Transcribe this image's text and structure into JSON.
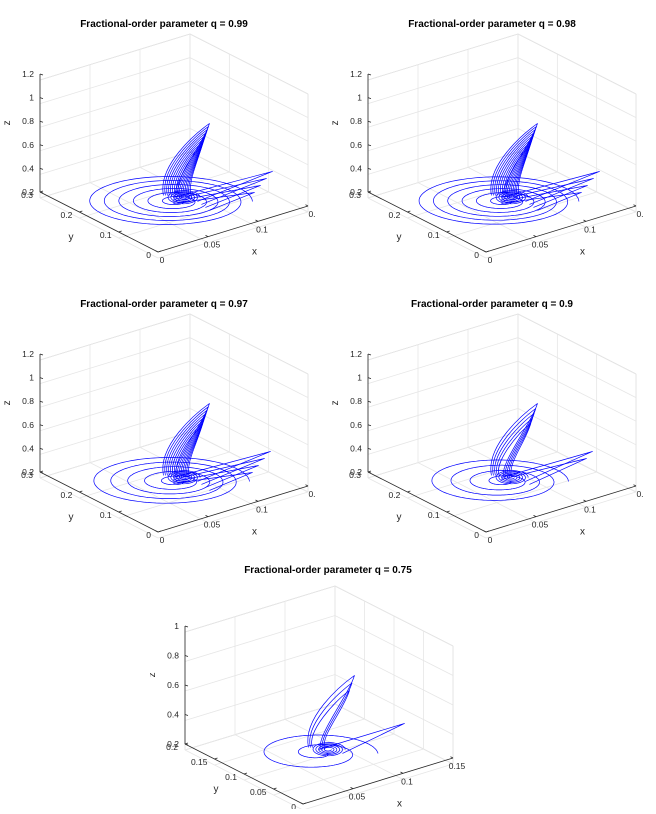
{
  "chart_data": [
    {
      "type": "line3d",
      "title": "Fractional-order parameter q = 0.99",
      "xlabel": "x",
      "ylabel": "y",
      "zlabel": "z",
      "xticks": [
        "0",
        "0.05",
        "0.1",
        "0."
      ],
      "yticks": [
        "0",
        "0.1",
        "0.2",
        "0.3"
      ],
      "zticks": [
        "0.2",
        "0.4",
        "0.6",
        "0.8",
        "1",
        "1.2"
      ],
      "xlim": [
        0,
        0.15
      ],
      "ylim": [
        0,
        0.3
      ],
      "zlim": [
        0.2,
        1.2
      ],
      "grid": true,
      "line_color": "#0000ff",
      "series": [
        {
          "name": "trajectory",
          "q": 0.99,
          "density": 1.0
        }
      ]
    },
    {
      "type": "line3d",
      "title": "Fractional-order parameter q = 0.98",
      "xlabel": "x",
      "ylabel": "y",
      "zlabel": "z",
      "xticks": [
        "0",
        "0.05",
        "0.1",
        "0."
      ],
      "yticks": [
        "0",
        "0.1",
        "0.2",
        "0.3"
      ],
      "zticks": [
        "0.2",
        "0.4",
        "0.6",
        "0.8",
        "1",
        "1.2"
      ],
      "xlim": [
        0,
        0.15
      ],
      "ylim": [
        0,
        0.3
      ],
      "zlim": [
        0.2,
        1.2
      ],
      "grid": true,
      "line_color": "#0000ff",
      "series": [
        {
          "name": "trajectory",
          "q": 0.98,
          "density": 0.95
        }
      ]
    },
    {
      "type": "line3d",
      "title": "Fractional-order parameter q = 0.97",
      "xlabel": "x",
      "ylabel": "y",
      "zlabel": "z",
      "xticks": [
        "0",
        "0.05",
        "0.1",
        "0."
      ],
      "yticks": [
        "0",
        "0.1",
        "0.2",
        "0.3"
      ],
      "zticks": [
        "0.2",
        "0.4",
        "0.6",
        "0.8",
        "1",
        "1.2"
      ],
      "xlim": [
        0,
        0.15
      ],
      "ylim": [
        0,
        0.3
      ],
      "zlim": [
        0.2,
        1.2
      ],
      "grid": true,
      "line_color": "#0000ff",
      "series": [
        {
          "name": "trajectory",
          "q": 0.97,
          "density": 0.9
        }
      ]
    },
    {
      "type": "line3d",
      "title": "Fractional-order parameter q = 0.9",
      "xlabel": "x",
      "ylabel": "y",
      "zlabel": "z",
      "xticks": [
        "0",
        "0.05",
        "0.1",
        "0."
      ],
      "yticks": [
        "0",
        "0.1",
        "0.2",
        "0.3"
      ],
      "zticks": [
        "0.2",
        "0.4",
        "0.6",
        "0.8",
        "1",
        "1.2"
      ],
      "xlim": [
        0,
        0.15
      ],
      "ylim": [
        0,
        0.3
      ],
      "zlim": [
        0.2,
        1.2
      ],
      "grid": true,
      "line_color": "#0000ff",
      "series": [
        {
          "name": "trajectory",
          "q": 0.9,
          "density": 0.6
        }
      ]
    },
    {
      "type": "line3d",
      "title": "Fractional-order parameter q = 0.75",
      "xlabel": "x",
      "ylabel": "y",
      "zlabel": "z",
      "xticks": [
        "0",
        "0.05",
        "0.1",
        "0.15"
      ],
      "yticks": [
        "0",
        "0.05",
        "0.1",
        "0.15",
        "0.2"
      ],
      "zticks": [
        "0.2",
        "0.4",
        "0.6",
        "0.8",
        "1"
      ],
      "xlim": [
        0,
        0.15
      ],
      "ylim": [
        0,
        0.2
      ],
      "zlim": [
        0.2,
        1.0
      ],
      "grid": true,
      "line_color": "#0000ff",
      "series": [
        {
          "name": "trajectory",
          "q": 0.75,
          "density": 0.35
        }
      ]
    }
  ]
}
